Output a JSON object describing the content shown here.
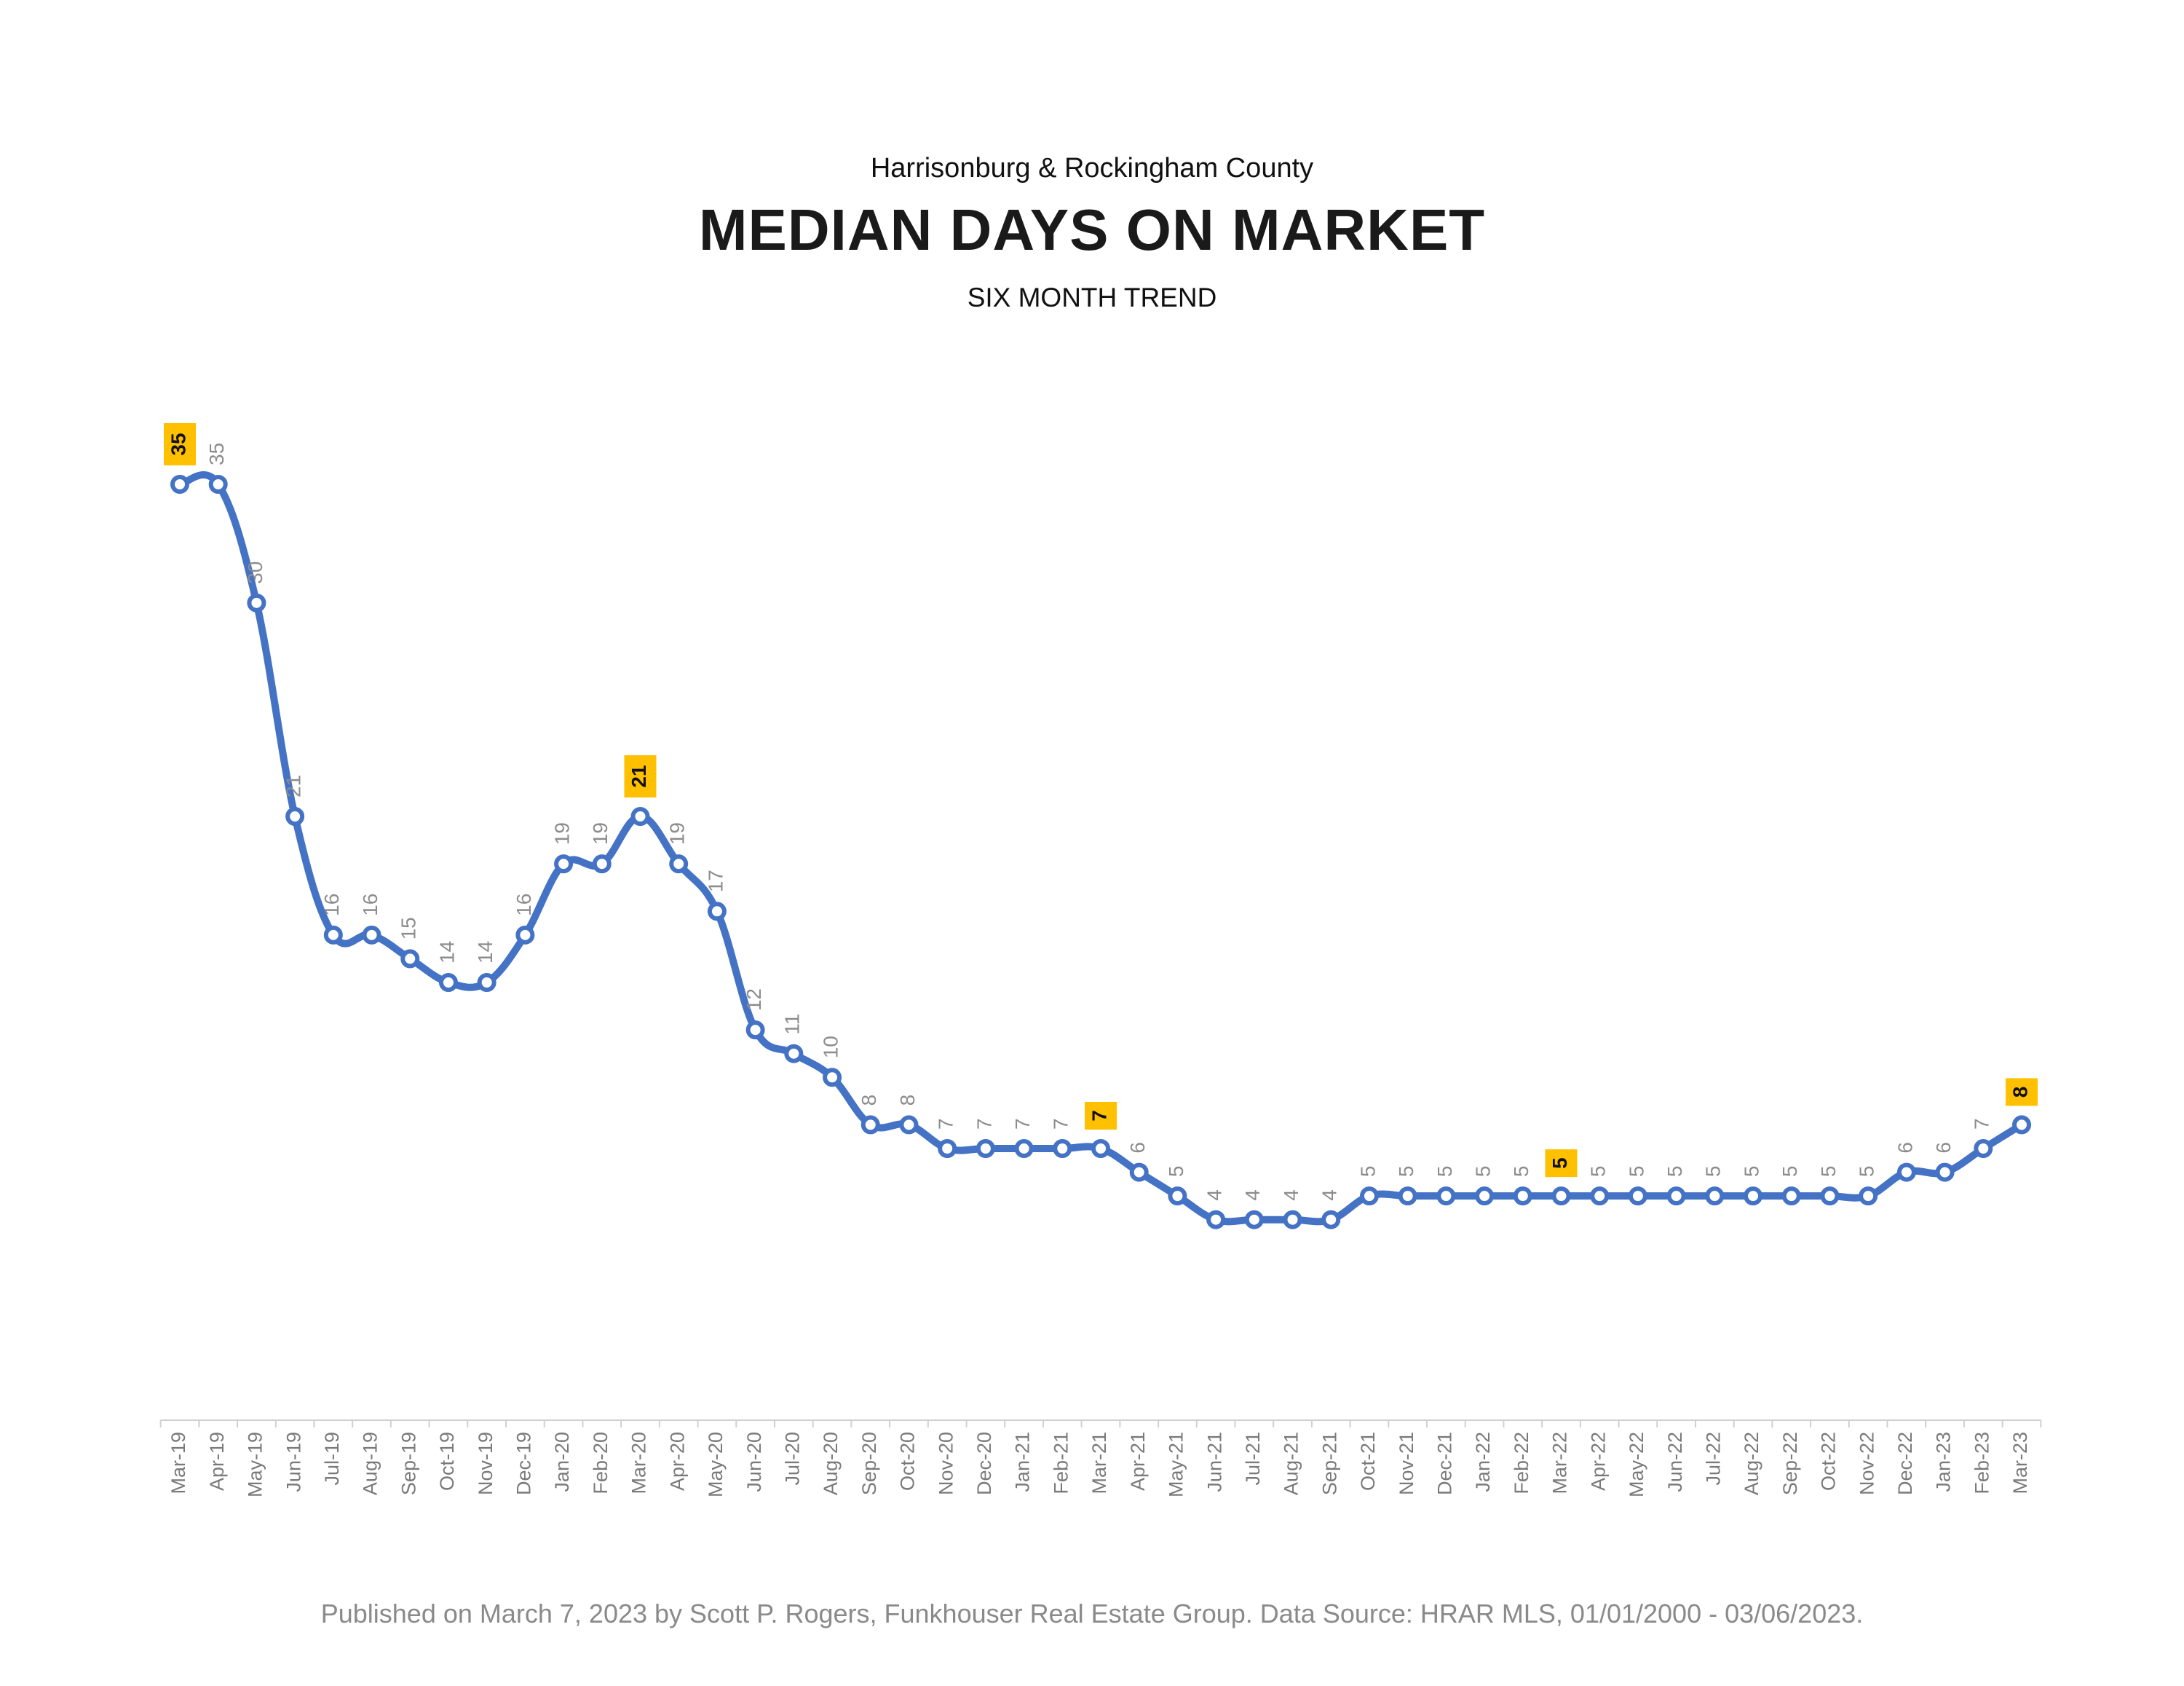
{
  "chart_data": {
    "type": "line",
    "title": "MEDIAN DAYS ON MARKET",
    "subtitle_top": "Harrisonburg & Rockingham County",
    "subtitle_bottom": "SIX MONTH TREND",
    "xlabel": "",
    "ylabel": "",
    "ylim": [
      0,
      35
    ],
    "grid": false,
    "legend": "none",
    "categories": [
      "Mar-19",
      "Apr-19",
      "May-19",
      "Jun-19",
      "Jul-19",
      "Aug-19",
      "Sep-19",
      "Oct-19",
      "Nov-19",
      "Dec-19",
      "Jan-20",
      "Feb-20",
      "Mar-20",
      "Apr-20",
      "May-20",
      "Jun-20",
      "Jul-20",
      "Aug-20",
      "Sep-20",
      "Oct-20",
      "Nov-20",
      "Dec-20",
      "Jan-21",
      "Feb-21",
      "Mar-21",
      "Apr-21",
      "May-21",
      "Jun-21",
      "Jul-21",
      "Aug-21",
      "Sep-21",
      "Oct-21",
      "Nov-21",
      "Dec-21",
      "Jan-22",
      "Feb-22",
      "Mar-22",
      "Apr-22",
      "May-22",
      "Jun-22",
      "Jul-22",
      "Aug-22",
      "Sep-22",
      "Oct-22",
      "Nov-22",
      "Dec-22",
      "Jan-23",
      "Feb-23",
      "Mar-23"
    ],
    "series": [
      {
        "values": [
          35,
          35,
          30,
          21,
          16,
          16,
          15,
          14,
          14,
          16,
          19,
          19,
          21,
          19,
          17,
          12,
          11,
          10,
          8,
          8,
          7,
          7,
          7,
          7,
          7,
          6,
          5,
          4,
          4,
          4,
          4,
          5,
          5,
          5,
          5,
          5,
          5,
          5,
          5,
          5,
          5,
          5,
          5,
          5,
          5,
          6,
          6,
          7,
          8
        ],
        "highlighted": [
          "Mar-19",
          "Mar-20",
          "Mar-21",
          "Mar-22",
          "Mar-23"
        ]
      }
    ],
    "colors": {
      "line": "#4472C4",
      "marker_fill": "#ffffff",
      "highlight": "#FFC000",
      "label": "#8c8c8c"
    }
  },
  "footer": "Published on March 7, 2023 by Scott P. Rogers, Funkhouser Real Estate Group. Data Source: HRAR MLS, 01/01/2000 - 03/06/2023."
}
